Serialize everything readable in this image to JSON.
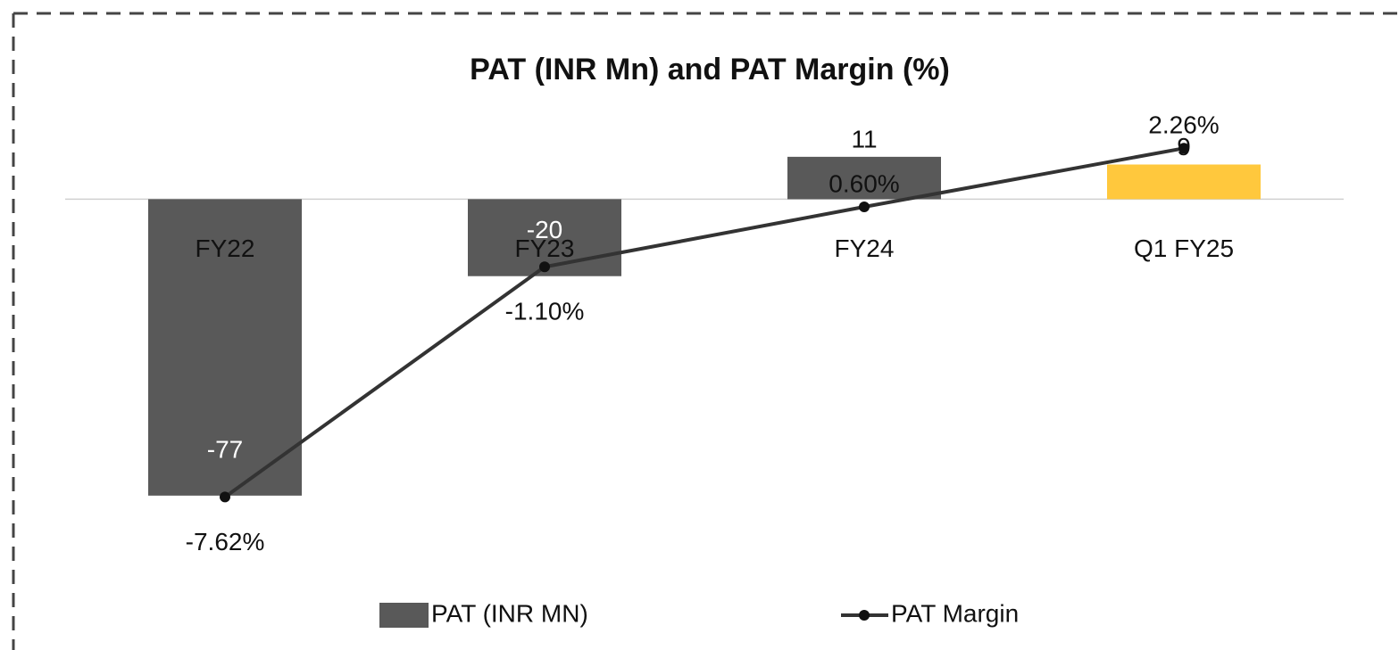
{
  "chart_data": {
    "type": "bar+line",
    "title": "PAT (INR Mn) and PAT Margin (%)",
    "categories": [
      "FY22",
      "FY23",
      "FY24",
      "Q1 FY25"
    ],
    "series": [
      {
        "name": "PAT (INR MN)",
        "type": "bar",
        "color": "#595959",
        "colors": [
          "#595959",
          "#595959",
          "#595959",
          "#FFC83D"
        ],
        "values": [
          -77,
          -20,
          11,
          9
        ]
      },
      {
        "name": "PAT Margin",
        "type": "line",
        "axis": "y2",
        "color": "#333333",
        "values": [
          -7.62,
          -1.1,
          0.6,
          2.26
        ],
        "value_labels": [
          "-7.62%",
          "-1.10%",
          "0.60%",
          "2.26%"
        ]
      }
    ],
    "ylim": [
      -90,
      20
    ],
    "y2lim": [
      -9,
      3
    ],
    "legend": "bottom"
  }
}
